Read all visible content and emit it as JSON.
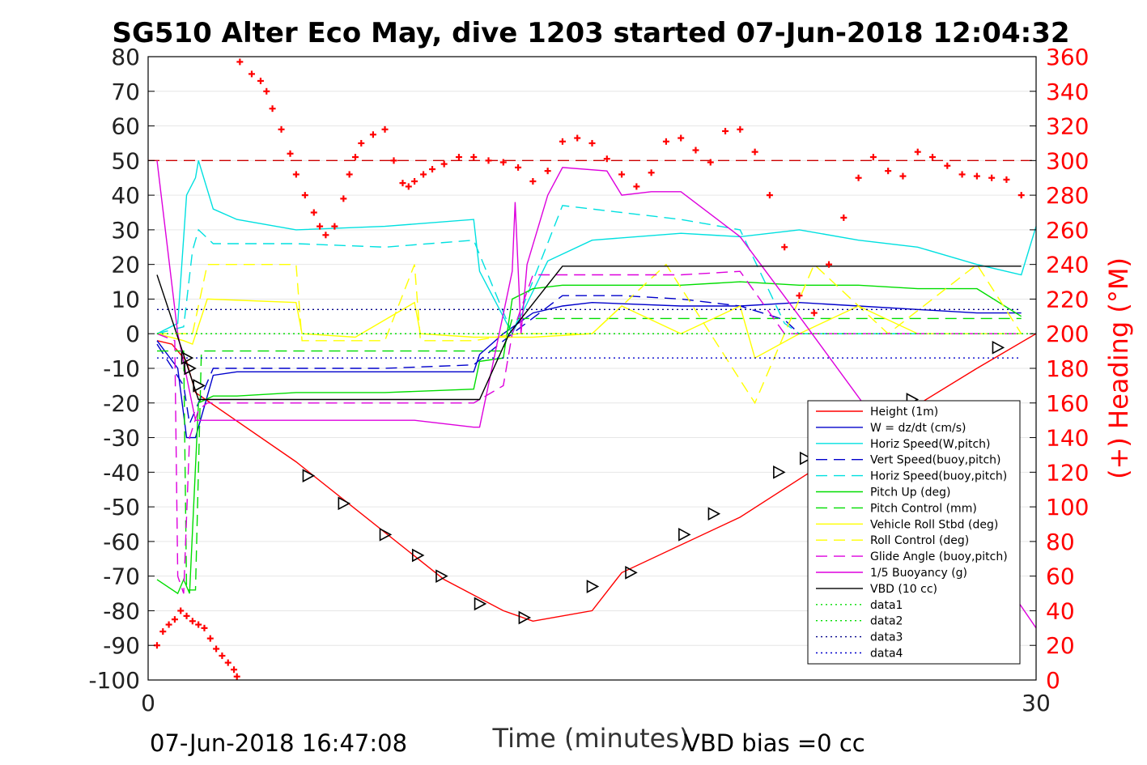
{
  "chart_data": {
    "type": "line",
    "title": "SG510 Alter Eco May, dive 1203 started 07-Jun-2018 12:04:32",
    "xlabel": "Time (minutes)",
    "ylabel_right": "(+) Heading (°M)",
    "footer_left": "07-Jun-2018 16:47:08",
    "footer_right": "VBD bias =0 cc",
    "xlim": [
      0,
      30
    ],
    "ylim": [
      -100,
      80
    ],
    "ylim_right": [
      0,
      360
    ],
    "xticks": [
      "0",
      "30"
    ],
    "yticks": [
      "80",
      "70",
      "60",
      "50",
      "40",
      "30",
      "20",
      "10",
      "0",
      "-10",
      "-20",
      "-30",
      "-40",
      "-50",
      "-60",
      "-70",
      "-80",
      "-90",
      "-100"
    ],
    "yticks_right": [
      "360",
      "340",
      "320",
      "300",
      "280",
      "260",
      "240",
      "220",
      "200",
      "180",
      "160",
      "140",
      "120",
      "100",
      "80",
      "60",
      "40",
      "20",
      "0"
    ],
    "grid": true,
    "legend_position": "bottom-right",
    "reference_lines": [
      {
        "axis": "right",
        "value": 300,
        "color": "#cc0000",
        "style": "dashed"
      }
    ],
    "series": [
      {
        "name": "Height (1m)",
        "color": "#ff0000",
        "style": "solid",
        "x": [
          0.3,
          0.8,
          1.3,
          1.6,
          5,
          10,
          12,
          13,
          15,
          16,
          20,
          24,
          28,
          30
        ],
        "y": [
          -2,
          -3,
          -8,
          -17,
          -37,
          -71,
          -80,
          -83,
          -80,
          -69,
          -53,
          -31,
          -10,
          0
        ]
      },
      {
        "name": "W = dz/dt (cm/s)",
        "color": "#0000cc",
        "style": "solid",
        "x": [
          0.3,
          1.0,
          1.3,
          1.6,
          2.2,
          3,
          5,
          8,
          11,
          11.2,
          12,
          13,
          14,
          15,
          18,
          20,
          22,
          24,
          26,
          28,
          29.5
        ],
        "y": [
          -2,
          -10,
          -30,
          -30,
          -12,
          -11,
          -11,
          -11,
          -11,
          -6,
          0,
          6,
          8,
          9,
          8,
          8,
          9,
          8,
          7,
          6,
          6
        ]
      },
      {
        "name": "Horiz Speed(W,pitch)",
        "color": "#00e0e0",
        "style": "solid",
        "x": [
          0.3,
          1.0,
          1.3,
          1.6,
          1.7,
          2.2,
          3,
          5,
          8,
          11,
          11.2,
          12.3,
          13.5,
          15,
          18,
          20,
          22,
          24,
          26,
          28,
          29.5,
          30
        ],
        "y": [
          0,
          3,
          40,
          45,
          50,
          36,
          33,
          30,
          31,
          33,
          18,
          0,
          21,
          27,
          29,
          28,
          30,
          27,
          25,
          20,
          17,
          31
        ]
      },
      {
        "name": "Vert Speed(buoy,pitch)",
        "color": "#0000cc",
        "style": "dashed",
        "x": [
          0.3,
          1.2,
          1.4,
          2.2,
          3,
          8,
          11,
          12.3,
          14,
          16,
          18,
          20,
          21.5,
          22,
          29.5
        ],
        "y": [
          -3,
          -15,
          -26,
          -10,
          -10,
          -10,
          -9,
          0,
          11,
          11,
          10,
          8,
          4,
          0,
          0
        ]
      },
      {
        "name": "Horiz Speed(buoy,pitch)",
        "color": "#00e0e0",
        "style": "dashed",
        "x": [
          0.3,
          1.2,
          1.5,
          1.7,
          2.2,
          5,
          8,
          11,
          12.3,
          14,
          16,
          18,
          20,
          21.5,
          22,
          29.5
        ],
        "y": [
          0,
          2,
          24,
          30,
          26,
          26,
          25,
          27,
          0,
          37,
          35,
          33,
          30,
          3,
          0,
          0
        ]
      },
      {
        "name": "Pitch Up (deg)",
        "color": "#00dd00",
        "style": "solid",
        "x": [
          0.3,
          1.0,
          1.2,
          1.4,
          1.7,
          2.2,
          3,
          5,
          8,
          11,
          11.2,
          12,
          12.3,
          13,
          14,
          16,
          18,
          20,
          22,
          24,
          26,
          28,
          29.5
        ],
        "y": [
          -71,
          -75,
          -71,
          -75,
          -20,
          -18,
          -18,
          -17,
          -17,
          -16,
          -8,
          -7,
          10,
          13,
          14,
          14,
          14,
          15,
          14,
          14,
          13,
          13,
          5
        ]
      },
      {
        "name": "Pitch Control (mm)",
        "color": "#00dd00",
        "style": "dashed",
        "x": [
          0.3,
          1.2,
          1.3,
          1.6,
          1.8,
          3,
          11,
          11.3,
          12,
          12.3,
          29.5
        ],
        "y": [
          -5,
          -5,
          -74,
          -74,
          -5,
          -5,
          -5,
          -5,
          -5,
          4.4,
          4.4
        ]
      },
      {
        "name": "Vehicle Roll Stbd (deg)",
        "color": "#ffff00",
        "style": "solid",
        "x": [
          0.3,
          1.2,
          1.5,
          2.0,
          5,
          5.2,
          7,
          9,
          9.2,
          11,
          13,
          15,
          16,
          18,
          20,
          20.5,
          22,
          24,
          26,
          29.5
        ],
        "y": [
          0,
          -2,
          -3,
          10,
          9,
          0,
          -1,
          9,
          0,
          -1,
          -1,
          0,
          8,
          0,
          8,
          -7,
          0,
          8,
          0,
          0
        ]
      },
      {
        "name": "Roll Control (deg)",
        "color": "#ffff00",
        "style": "dashed",
        "x": [
          0.3,
          1.5,
          2.0,
          5,
          5.2,
          8,
          9,
          9.2,
          11,
          12.5,
          15,
          17.5,
          20.5,
          21.5,
          22.5,
          25,
          28,
          29.5
        ],
        "y": [
          0,
          0,
          20,
          20,
          -2,
          -2,
          20,
          -2,
          -2,
          0,
          0,
          20,
          -20,
          0,
          20,
          0,
          20,
          0
        ]
      },
      {
        "name": "Glide Angle (buoy,pitch)",
        "color": "#dd00dd",
        "style": "dashed",
        "x": [
          0.3,
          0.9,
          1.0,
          1.2,
          1.4,
          1.7,
          2.0,
          3,
          8,
          11,
          12,
          12.3,
          13,
          16,
          18,
          20,
          21.5,
          22,
          29.5
        ],
        "y": [
          0,
          -2,
          -70,
          -75,
          -30,
          -22,
          -20,
          -20,
          -20,
          -20,
          -15,
          0,
          17,
          17,
          17,
          18,
          0,
          0,
          0
        ]
      },
      {
        "name": "1/5 Buoyancy (g)",
        "color": "#dd00dd",
        "style": "solid",
        "x": [
          0.3,
          1.0,
          1.6,
          3,
          8,
          9,
          11,
          11.2,
          12.3,
          12.4,
          12.6,
          12.8,
          13.5,
          14,
          15.5,
          16,
          17,
          18,
          20,
          22,
          25,
          28,
          30
        ],
        "y": [
          50,
          0,
          -25,
          -25,
          -25,
          -25,
          -27,
          -27,
          18,
          38,
          0,
          20,
          40,
          48,
          47,
          40,
          41,
          41,
          28,
          5,
          -30,
          -60,
          -85
        ]
      },
      {
        "name": "VBD (10 cc)",
        "color": "#000000",
        "style": "solid",
        "x": [
          0.3,
          1.7,
          3,
          11,
          11.2,
          12.2,
          14,
          29.5
        ],
        "y": [
          17,
          -19,
          -19,
          -19,
          -19,
          0,
          19.5,
          19.5
        ]
      },
      {
        "name": "data1",
        "color": "#00dd00",
        "style": "dotted",
        "x": [
          0.3,
          30
        ],
        "y": [
          0,
          0
        ]
      },
      {
        "name": "data2",
        "color": "#00dd00",
        "style": "dotted",
        "x": [
          0.3,
          30
        ],
        "y": [
          0,
          0
        ]
      },
      {
        "name": "data3",
        "color": "#000088",
        "style": "dotted",
        "x": [
          0.3,
          29.5
        ],
        "y": [
          7,
          7
        ]
      },
      {
        "name": "data4",
        "color": "#0000cc",
        "style": "dotted",
        "x": [
          0.3,
          29.5
        ],
        "y": [
          -7,
          -7
        ]
      }
    ],
    "heading_points": {
      "axis": "right",
      "color": "#ff0000",
      "marker": "plus",
      "x": [
        0.3,
        0.5,
        0.7,
        0.9,
        1.1,
        1.3,
        1.5,
        1.7,
        1.9,
        2.1,
        2.3,
        2.5,
        2.7,
        2.9,
        3.0,
        3.1,
        3.5,
        3.8,
        4.0,
        4.2,
        4.5,
        4.8,
        5.0,
        5.3,
        5.6,
        5.8,
        6.0,
        6.3,
        6.6,
        6.8,
        7.0,
        7.2,
        7.6,
        8.0,
        8.3,
        8.6,
        8.8,
        9.0,
        9.3,
        9.6,
        10.0,
        10.5,
        11.0,
        11.5,
        12.0,
        12.5,
        13.0,
        13.5,
        14.0,
        14.5,
        15.0,
        15.5,
        16.0,
        16.5,
        17.0,
        17.5,
        18.0,
        18.5,
        19.0,
        19.5,
        20.0,
        20.5,
        21.0,
        21.5,
        22.0,
        22.5,
        23.0,
        23.5,
        24.0,
        24.5,
        25.0,
        25.5,
        26.0,
        26.5,
        27.0,
        27.5,
        28.0,
        28.5,
        29.0,
        29.5
      ],
      "y": [
        20,
        28,
        32,
        35,
        40,
        37,
        34,
        32,
        30,
        24,
        18,
        14,
        10,
        6,
        2,
        357,
        350,
        346,
        340,
        330,
        318,
        304,
        292,
        280,
        270,
        262,
        257,
        262,
        278,
        292,
        302,
        310,
        315,
        318,
        300,
        287,
        285,
        288,
        292,
        295,
        298,
        302,
        302,
        300,
        299,
        296,
        288,
        294,
        311,
        313,
        310,
        301,
        292,
        285,
        293,
        311,
        313,
        306,
        299,
        317,
        318,
        305,
        280,
        250,
        222,
        212,
        240,
        267,
        290,
        302,
        294,
        291,
        305,
        302,
        297,
        292,
        291,
        290,
        289,
        280
      ]
    },
    "triangle_markers": {
      "color": "#000000",
      "x": [
        1.3,
        1.4,
        1.7,
        5.4,
        6.6,
        8.0,
        9.1,
        9.9,
        11.2,
        12.7,
        15.0,
        16.3,
        18.1,
        19.1,
        21.3,
        22.2,
        25.8,
        28.7
      ],
      "y": [
        -7,
        -10,
        -15,
        -41,
        -49,
        -58,
        -64,
        -70,
        -78,
        -82,
        -73,
        -69,
        -58,
        -52,
        -40,
        -36,
        -19,
        -4
      ]
    },
    "legend": [
      "Height (1m)",
      "W = dz/dt (cm/s)",
      "Horiz Speed(W,pitch)",
      "Vert Speed(buoy,pitch)",
      "Horiz Speed(buoy,pitch)",
      "Pitch Up (deg)",
      "Pitch Control (mm)",
      "Vehicle Roll Stbd (deg)",
      "Roll Control (deg)",
      "Glide Angle (buoy,pitch)",
      "1/5 Buoyancy (g)",
      "VBD (10 cc)",
      "data1",
      "data2",
      "data3",
      "data4"
    ]
  }
}
